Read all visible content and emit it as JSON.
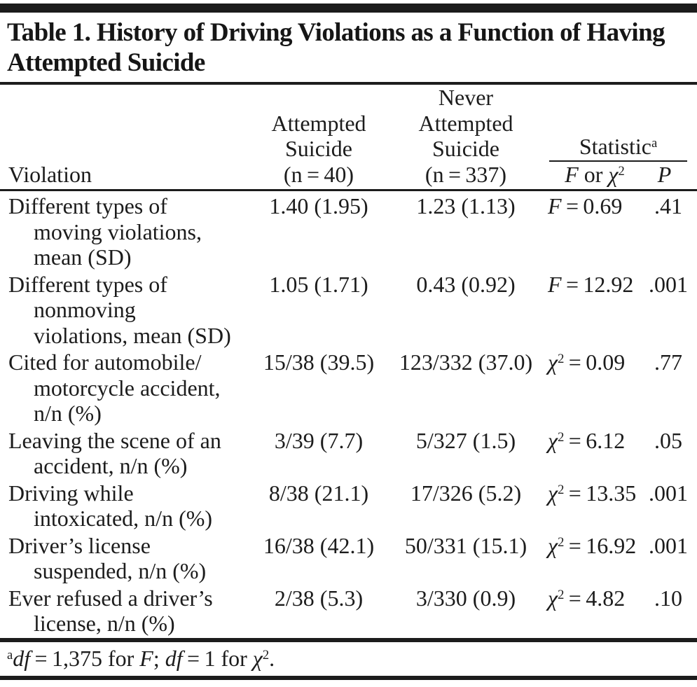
{
  "title": "Table 1. History of Driving Violations as a Function of Having\nAttempted Suicide",
  "colors": {
    "ink": "#1c1c1c",
    "background": "#ffffff"
  },
  "header": {
    "violation": "Violation",
    "attempted": "Attempted\nSuicide\n(n = 40)",
    "never": "Never\nAttempted\nSuicide\n(n = 337)",
    "statistic": "Statistic",
    "statistic_sup": "a",
    "stat_f": "F",
    "stat_or": " or ",
    "stat_chi": "χ",
    "stat_chi_sup": "2",
    "p": "P"
  },
  "rows": [
    {
      "violation": "Different types of\nmoving violations,\nmean (SD)",
      "attempted": "1.40 (1.95)",
      "never": "1.23 (1.13)",
      "stat_sym": "F",
      "stat_sup": "",
      "stat_val": " = 0.69",
      "p": ".41"
    },
    {
      "violation": "Different types of\nnonmoving\nviolations, mean (SD)",
      "attempted": "1.05 (1.71)",
      "never": "0.43 (0.92)",
      "stat_sym": "F",
      "stat_sup": "",
      "stat_val": " = 12.92",
      "p": ".001"
    },
    {
      "violation": "Cited for automobile/\nmotorcycle accident,\nn/n (%)",
      "attempted": "15/38 (39.5)",
      "never": "123/332 (37.0)",
      "stat_sym": "χ",
      "stat_sup": "2",
      "stat_val": " = 0.09",
      "p": ".77"
    },
    {
      "violation": "Leaving the scene of an\naccident, n/n (%)",
      "attempted": "3/39 (7.7)",
      "never": "5/327 (1.5)",
      "stat_sym": "χ",
      "stat_sup": "2",
      "stat_val": " = 6.12",
      "p": ".05"
    },
    {
      "violation": "Driving while\nintoxicated, n/n (%)",
      "attempted": "8/38 (21.1)",
      "never": "17/326 (5.2)",
      "stat_sym": "χ",
      "stat_sup": "2",
      "stat_val": " = 13.35",
      "p": ".001"
    },
    {
      "violation": "Driver’s license\nsuspended, n/n (%)",
      "attempted": "16/38 (42.1)",
      "never": "50/331 (15.1)",
      "stat_sym": "χ",
      "stat_sup": "2",
      "stat_val": " = 16.92",
      "p": ".001"
    },
    {
      "violation": "Ever refused a driver’s\nlicense, n/n (%)",
      "attempted": "2/38 (5.3)",
      "never": "3/330 (0.9)",
      "stat_sym": "χ",
      "stat_sup": "2",
      "stat_val": " = 4.82",
      "p": ".10"
    }
  ],
  "footnote": {
    "marker": "a",
    "df1": "df",
    "t1": " = 1,375 for ",
    "f": "F",
    "t2": "; ",
    "df2": "df",
    "t3": " = 1 for ",
    "chi": "χ",
    "chi_sup": "2",
    "t4": "."
  }
}
